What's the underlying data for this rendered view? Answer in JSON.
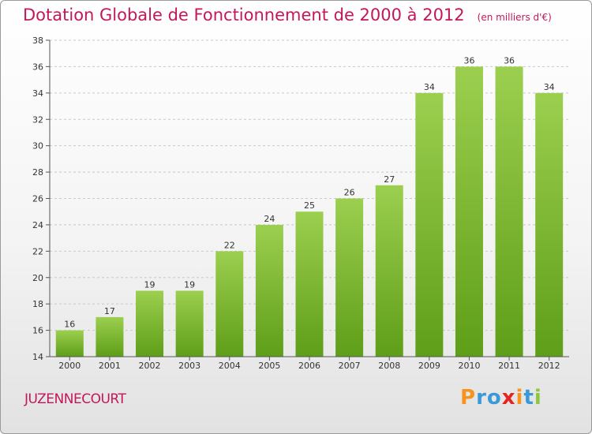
{
  "header": {
    "title": "Dotation Globale de Fonctionnement de 2000 à 2012",
    "unit": "(en milliers d'€)"
  },
  "footer": {
    "commune": "JUZENNECOURT",
    "brand_letters": [
      "P",
      "r",
      "o",
      "x",
      "i",
      "t",
      "i"
    ]
  },
  "colors": {
    "title": "#c2185b",
    "bar_top": "#9ccf4f",
    "bar_bottom": "#5e9e18",
    "grid": "#c8c8c8",
    "axis": "#555555",
    "brand": [
      "#f7941d",
      "#3a9ad9",
      "#3a9ad9",
      "#e52421",
      "#f7941d",
      "#3a9ad9",
      "#8dc63f"
    ]
  },
  "chart_data": {
    "type": "bar",
    "title": "Dotation Globale de Fonctionnement de 2000 à 2012",
    "subtitle": "(en milliers d'€)",
    "xlabel": "",
    "ylabel": "",
    "categories": [
      "2000",
      "2001",
      "2002",
      "2003",
      "2004",
      "2005",
      "2006",
      "2007",
      "2008",
      "2009",
      "2010",
      "2011",
      "2012"
    ],
    "values": [
      16,
      17,
      19,
      19,
      22,
      24,
      25,
      26,
      27,
      34,
      36,
      36,
      34
    ],
    "ylim": [
      14,
      38
    ],
    "yticks": [
      14,
      16,
      18,
      20,
      22,
      24,
      26,
      28,
      30,
      32,
      34,
      36,
      38
    ],
    "grid": true,
    "legend": "none"
  }
}
